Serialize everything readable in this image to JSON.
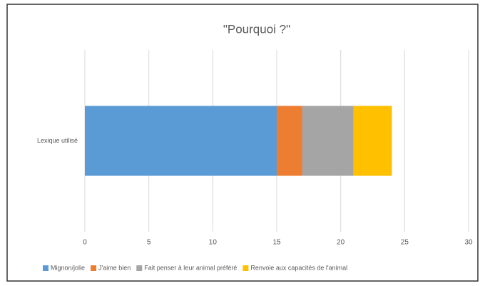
{
  "chart_data": {
    "type": "stacked_barh",
    "title": "\"Pourquoi ?\"",
    "categories": [
      "Lexique utilisé"
    ],
    "series": [
      {
        "name": "Mignon/jolie",
        "color": "#5b9bd5",
        "values": [
          15
        ]
      },
      {
        "name": "J'aime bien",
        "color": "#ed7d31",
        "values": [
          2
        ]
      },
      {
        "name": "Fait penser à leur animal préféré",
        "color": "#a5a5a5",
        "values": [
          4
        ]
      },
      {
        "name": "Renvoie aux capacités de l'animal",
        "color": "#ffc000",
        "values": [
          3
        ]
      }
    ],
    "xlim": [
      0,
      30
    ],
    "xticks": [
      0,
      5,
      10,
      15,
      20,
      25,
      30
    ],
    "grid": true,
    "legend": "bottom"
  }
}
